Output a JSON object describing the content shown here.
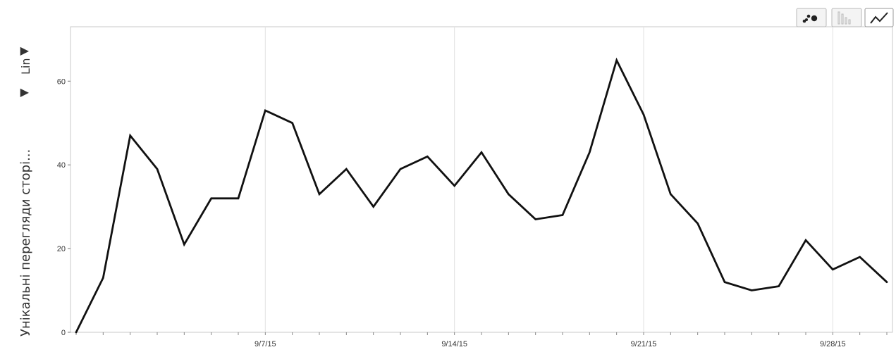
{
  "chart_data": {
    "type": "line",
    "x": [
      "8/31/15",
      "9/1/15",
      "9/2/15",
      "9/3/15",
      "9/4/15",
      "9/5/15",
      "9/6/15",
      "9/7/15",
      "9/8/15",
      "9/9/15",
      "9/10/15",
      "9/11/15",
      "9/12/15",
      "9/13/15",
      "9/14/15",
      "9/15/15",
      "9/16/15",
      "9/17/15",
      "9/18/15",
      "9/19/15",
      "9/20/15",
      "9/21/15",
      "9/22/15",
      "9/23/15",
      "9/24/15",
      "9/25/15",
      "9/26/15",
      "9/27/15",
      "9/28/15",
      "9/29/15",
      "9/30/15"
    ],
    "values": [
      0,
      13,
      47,
      39,
      21,
      32,
      32,
      53,
      50,
      33,
      39,
      30,
      39,
      42,
      35,
      43,
      33,
      27,
      28,
      43,
      65,
      52,
      33,
      26,
      12,
      10,
      11,
      22,
      15,
      18,
      12
    ],
    "x_tick_labels": [
      "9/7/15",
      "9/14/15",
      "9/21/15",
      "9/28/15"
    ],
    "y_ticks": [
      0,
      20,
      40,
      60
    ],
    "ylim": [
      0,
      73
    ],
    "ylabel": "Унікальні перегляди сторі...",
    "scale_label": "Lin",
    "grid": "vertical at week ticks",
    "line_color": "#111111"
  },
  "toolbar": {
    "buttons": [
      {
        "name": "scatter-chart-button",
        "icon": "scatter-icon",
        "active": false
      },
      {
        "name": "bar-chart-button",
        "icon": "bar-icon",
        "active": false
      },
      {
        "name": "line-chart-button",
        "icon": "line-icon",
        "active": true
      }
    ]
  },
  "controls": {
    "metric_dropdown_arrow": "▼",
    "scale_dropdown_arrow": "▼"
  }
}
